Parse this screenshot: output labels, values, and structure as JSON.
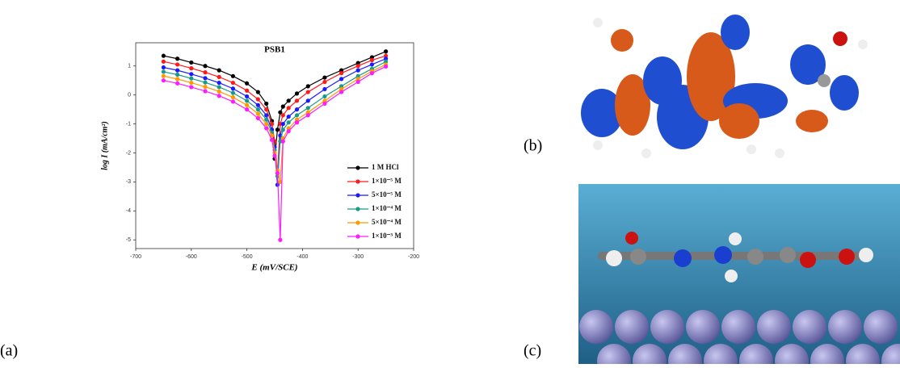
{
  "chart_data": {
    "type": "line",
    "title": "PSB1",
    "x_label": "E (mV/SCE)",
    "y_label": "log I (mA/cm²)",
    "x": [
      -650,
      -625,
      -600,
      -575,
      -550,
      -525,
      -500,
      -480,
      -465,
      -455,
      -450,
      -445,
      -440,
      -435,
      -425,
      -410,
      -390,
      -360,
      -330,
      -300,
      -275,
      -250
    ],
    "series": [
      {
        "name": "1 M HCl",
        "color": "#000000",
        "values": [
          1.35,
          1.25,
          1.12,
          1.0,
          0.85,
          0.65,
          0.4,
          0.1,
          -0.3,
          -0.9,
          -2.2,
          -1.2,
          -0.6,
          -0.4,
          -0.2,
          0.05,
          0.3,
          0.6,
          0.85,
          1.1,
          1.3,
          1.5
        ]
      },
      {
        "name": "1×10⁻⁵ M",
        "color": "#ff1a1a",
        "values": [
          1.15,
          1.05,
          0.92,
          0.78,
          0.62,
          0.42,
          0.15,
          -0.15,
          -0.5,
          -1.0,
          -1.6,
          -2.7,
          -1.0,
          -0.7,
          -0.45,
          -0.2,
          0.1,
          0.45,
          0.75,
          1.0,
          1.2,
          1.35
        ]
      },
      {
        "name": "5×10⁻⁵ M",
        "color": "#1a1aff",
        "values": [
          0.95,
          0.85,
          0.72,
          0.58,
          0.42,
          0.22,
          -0.05,
          -0.35,
          -0.7,
          -1.2,
          -1.8,
          -3.1,
          -1.4,
          -1.0,
          -0.75,
          -0.5,
          -0.2,
          0.2,
          0.55,
          0.85,
          1.05,
          1.25
        ]
      },
      {
        "name": "1×10⁻⁴ M",
        "color": "#1a9a8a",
        "values": [
          0.8,
          0.7,
          0.57,
          0.43,
          0.27,
          0.07,
          -0.2,
          -0.5,
          -0.85,
          -1.3,
          -1.9,
          -2.8,
          -1.6,
          -1.2,
          -0.95,
          -0.7,
          -0.45,
          -0.05,
          0.3,
          0.65,
          0.9,
          1.15
        ]
      },
      {
        "name": "5×10⁻⁴ M",
        "color": "#ff9900",
        "values": [
          0.65,
          0.55,
          0.42,
          0.28,
          0.12,
          -0.08,
          -0.35,
          -0.65,
          -1.0,
          -1.4,
          -2.0,
          -2.6,
          -3.0,
          -1.5,
          -1.15,
          -0.85,
          -0.6,
          -0.2,
          0.2,
          0.55,
          0.82,
          1.05
        ]
      },
      {
        "name": "1×10⁻³ M",
        "color": "#ff1aff",
        "values": [
          0.5,
          0.4,
          0.27,
          0.13,
          -0.03,
          -0.23,
          -0.5,
          -0.8,
          -1.15,
          -1.55,
          -2.1,
          -2.7,
          -5.0,
          -1.6,
          -1.25,
          -0.95,
          -0.7,
          -0.3,
          0.1,
          0.45,
          0.75,
          0.98
        ]
      }
    ],
    "xlim": [
      -700,
      -200
    ],
    "xticks": [
      -700,
      -600,
      -500,
      -400,
      -300,
      -200
    ],
    "ylim": [
      -5.3,
      1.8
    ],
    "yticks": [
      -5,
      -4,
      -3,
      -2,
      -1,
      0,
      1
    ],
    "legend": "lower right"
  },
  "panel_labels": [
    "(a)",
    "(b)",
    "(c)"
  ]
}
